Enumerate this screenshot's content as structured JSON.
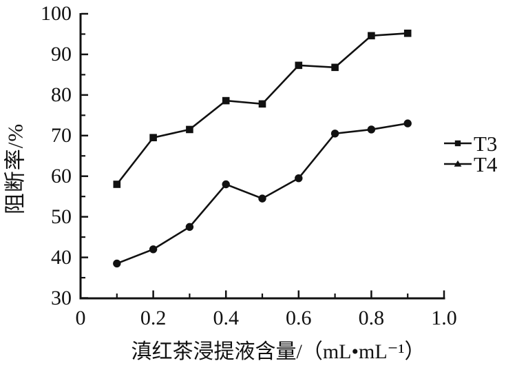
{
  "chart_data": {
    "type": "line",
    "title": "",
    "xlabel": "滇红茶浸提液含量/（mL•mL⁻¹）",
    "ylabel": "阻断率/%",
    "xlim": [
      0,
      1.0
    ],
    "ylim": [
      30,
      100
    ],
    "grid": false,
    "legend_position": "right",
    "ink_color": "#111111",
    "background_color": "#ffffff",
    "x": [
      0.1,
      0.2,
      0.3,
      0.4,
      0.5,
      0.6,
      0.7,
      0.8,
      0.9
    ],
    "series": [
      {
        "name": "T3",
        "marker": "square",
        "legend_marker": "square",
        "values": [
          58,
          69.5,
          71.5,
          78.6,
          77.8,
          87.3,
          86.8,
          94.6,
          95.2
        ]
      },
      {
        "name": "T4",
        "marker": "circle",
        "legend_marker": "triangle",
        "values": [
          38.5,
          42,
          47.5,
          58,
          54.5,
          59.5,
          70.5,
          71.5,
          73
        ]
      }
    ],
    "y_ticks": [
      {
        "value": 100,
        "label": "100"
      },
      {
        "value": 90,
        "label": "90"
      },
      {
        "value": 80,
        "label": "80"
      },
      {
        "value": 70,
        "label": "70"
      },
      {
        "value": 60,
        "label": "60"
      },
      {
        "value": 50,
        "label": "50"
      },
      {
        "value": 40,
        "label": "40"
      },
      {
        "value": 30,
        "label": "30"
      }
    ],
    "y_minor_ticks": [
      95,
      85,
      75,
      65,
      55,
      45,
      35
    ],
    "x_ticks": [
      {
        "value": 0,
        "label": "0"
      },
      {
        "value": 0.2,
        "label": "0.2"
      },
      {
        "value": 0.4,
        "label": "0.4"
      },
      {
        "value": 0.6,
        "label": "0.6"
      },
      {
        "value": 0.8,
        "label": "0.8"
      },
      {
        "value": 1.0,
        "label": "1.0"
      }
    ],
    "x_minor_ticks": [
      0.1,
      0.3,
      0.5,
      0.7,
      0.9
    ]
  }
}
